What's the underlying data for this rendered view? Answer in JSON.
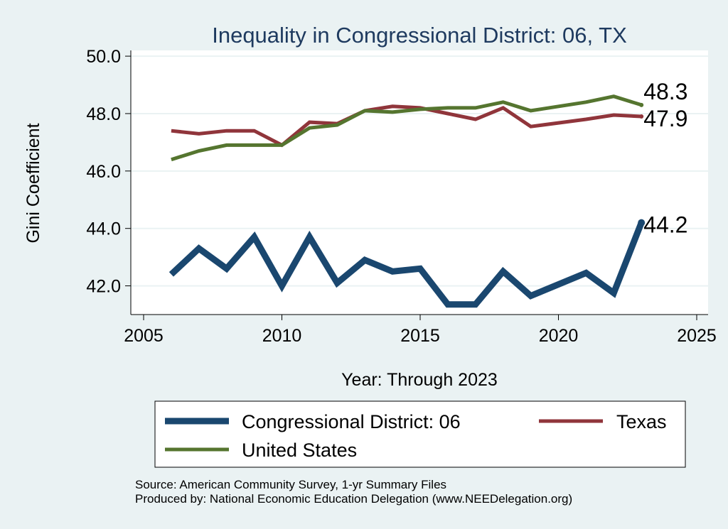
{
  "chart_data": {
    "type": "line",
    "title": "Inequality in Congressional District:  06, TX",
    "xlabel": "Year: Through 2023",
    "ylabel": "Gini Coefficient",
    "xlim": [
      2005,
      2025
    ],
    "ylim": [
      41.0,
      50.2
    ],
    "x_ticks": [
      2005,
      2010,
      2015,
      2020,
      2025
    ],
    "y_ticks": [
      42.0,
      44.0,
      46.0,
      48.0,
      50.0
    ],
    "y_tick_labels": [
      "42.0",
      "44.0",
      "46.0",
      "48.0",
      "50.0"
    ],
    "grid": true,
    "legend_position": "bottom",
    "series": [
      {
        "name": "Congressional District:  06",
        "color": "#1a476f",
        "x": [
          2006,
          2007,
          2008,
          2009,
          2010,
          2011,
          2012,
          2013,
          2014,
          2015,
          2016,
          2017,
          2018,
          2019,
          2021,
          2022,
          2023
        ],
        "values": [
          42.4,
          43.3,
          42.6,
          43.7,
          42.0,
          43.7,
          42.1,
          42.9,
          42.5,
          42.6,
          41.35,
          41.35,
          42.5,
          41.65,
          42.45,
          41.75,
          44.2
        ],
        "end_label": "44.2"
      },
      {
        "name": "Texas",
        "color": "#90353b",
        "x": [
          2006,
          2007,
          2008,
          2009,
          2010,
          2011,
          2012,
          2013,
          2014,
          2015,
          2016,
          2017,
          2018,
          2019,
          2021,
          2022,
          2023
        ],
        "values": [
          47.4,
          47.3,
          47.4,
          47.4,
          46.9,
          47.7,
          47.65,
          48.1,
          48.25,
          48.2,
          48.0,
          47.8,
          48.2,
          47.55,
          47.8,
          47.95,
          47.9
        ],
        "end_label": "47.9"
      },
      {
        "name": "United States",
        "color": "#55752f",
        "x": [
          2006,
          2007,
          2008,
          2009,
          2010,
          2011,
          2012,
          2013,
          2014,
          2015,
          2016,
          2017,
          2018,
          2019,
          2021,
          2022,
          2023
        ],
        "values": [
          46.4,
          46.7,
          46.9,
          46.9,
          46.9,
          47.5,
          47.6,
          48.1,
          48.05,
          48.15,
          48.2,
          48.2,
          48.4,
          48.1,
          48.4,
          48.6,
          48.3
        ],
        "end_label": "48.3"
      }
    ],
    "notes": [
      "Source: American Community Survey, 1-yr Summary Files",
      "Produced by: National Economic Education Delegation (www.NEEDelegation.org)"
    ]
  }
}
